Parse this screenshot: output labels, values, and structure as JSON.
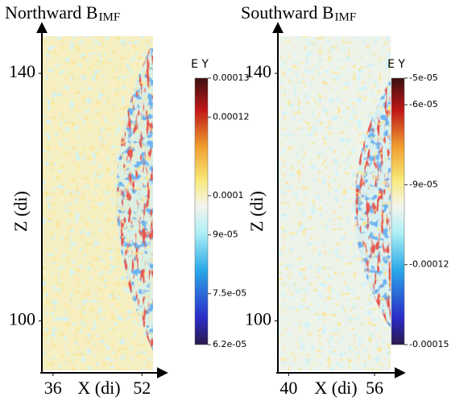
{
  "chart_data": [
    {
      "type": "heatmap",
      "title": "Northward B",
      "title_subscript": "IMF",
      "xlabel": "X (di)",
      "ylabel": "Z (di)",
      "xlim": [
        34,
        54
      ],
      "xticks": [
        36,
        52
      ],
      "ylim": [
        92,
        146
      ],
      "yticks": [
        100,
        140
      ],
      "colorbar_label": "E Y",
      "clim": [
        6.2e-05,
        0.00013
      ],
      "cticks": [
        0.00013,
        0.00012,
        0.0001,
        {
          "value": 9e-05,
          "label": "9e-05"
        },
        {
          "value": 7.5e-05,
          "label": "7.5e-05"
        },
        {
          "value": 6.2e-05,
          "label": "6.2e-05"
        }
      ]
    },
    {
      "type": "heatmap",
      "title": "Southward B",
      "title_subscript": "IMF",
      "xlabel": "X (di)",
      "ylabel": "Z (di)",
      "xlim": [
        38,
        59
      ],
      "xticks": [
        40,
        56
      ],
      "ylim": [
        92,
        146
      ],
      "yticks": [
        100,
        140
      ],
      "colorbar_label": "E Y",
      "clim": [
        -0.00015,
        -5e-05
      ],
      "cticks": [
        {
          "value": -5e-05,
          "label": "-5e-05"
        },
        {
          "value": -6e-05,
          "label": "-6e-05"
        },
        {
          "value": -9e-05,
          "label": "-9e-05"
        },
        -0.00012,
        -0.00015
      ]
    }
  ]
}
